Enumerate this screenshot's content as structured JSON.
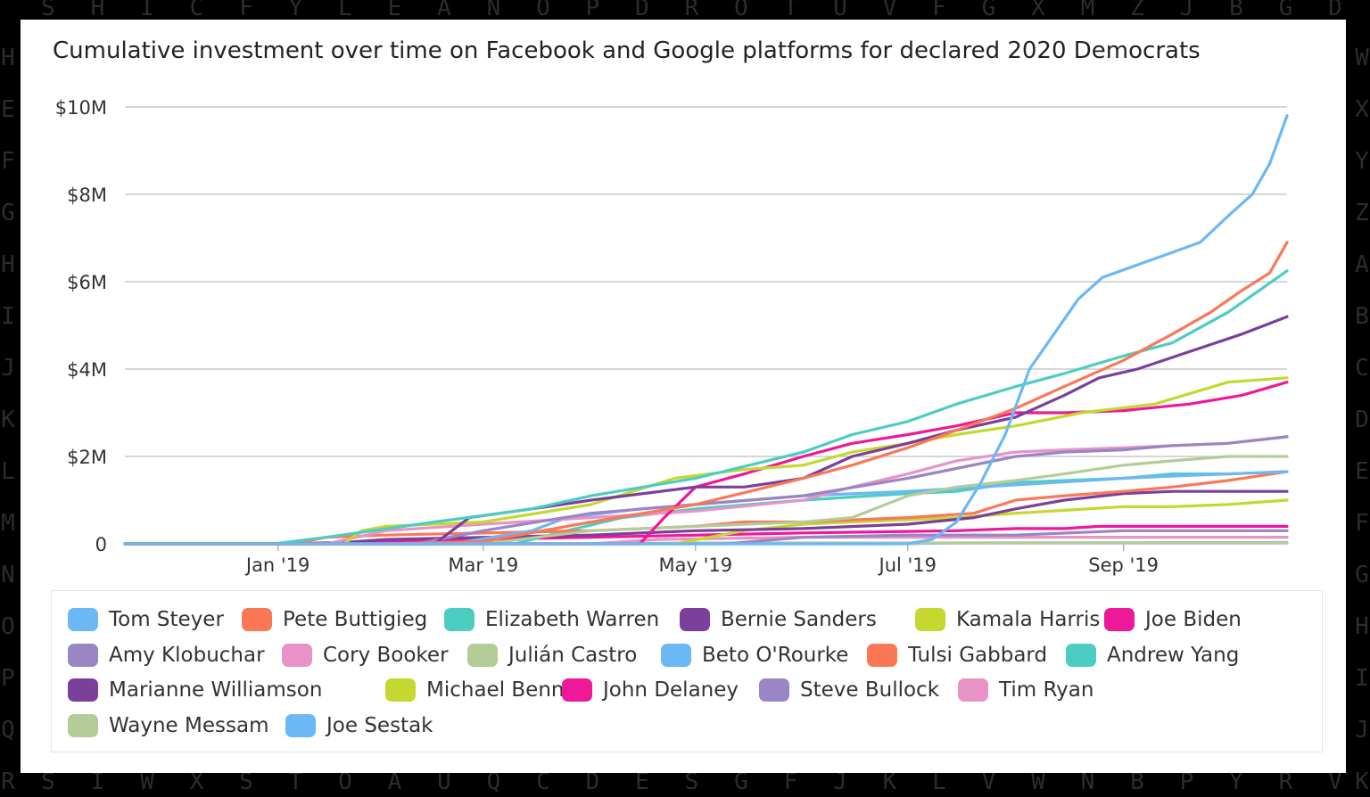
{
  "background": {
    "top_row": "SHICFYLEANOPDROTUVFGXMZJBGDW",
    "bottom_row": "SIWXSTOAUQCDESGFJKLVWNBPYRVI",
    "left_col": "HEFGHIJKLMNOPQR",
    "right_col": "WXYZABCDEFGHIJK"
  },
  "chart_data": {
    "type": "line",
    "title": "Cumulative investment over time on Facebook and Google platforms for declared 2020 Democrats",
    "xlabel": "",
    "ylabel": "",
    "x_range": [
      "2018-11-18",
      "2019-10-18"
    ],
    "ylim": [
      0,
      10
    ],
    "y_unit": "$M",
    "x_ticks": [
      {
        "date": "2019-01-01",
        "label": "Jan '19"
      },
      {
        "date": "2019-03-01",
        "label": "Mar '19"
      },
      {
        "date": "2019-05-01",
        "label": "May '19"
      },
      {
        "date": "2019-07-01",
        "label": "Jul '19"
      },
      {
        "date": "2019-09-01",
        "label": "Sep '19"
      }
    ],
    "y_ticks": [
      {
        "value": 0,
        "label": "0"
      },
      {
        "value": 2,
        "label": "$2M"
      },
      {
        "value": 4,
        "label": "$4M"
      },
      {
        "value": 6,
        "label": "$6M"
      },
      {
        "value": 8,
        "label": "$8M"
      },
      {
        "value": 10,
        "label": "$10M"
      }
    ],
    "grid": true,
    "legend_position": "bottom",
    "series": [
      {
        "name": "Tom Steyer",
        "color": "#6cb8f5",
        "points": [
          [
            "2018-11-18",
            0
          ],
          [
            "2019-07-01",
            0
          ],
          [
            "2019-07-08",
            0.1
          ],
          [
            "2019-07-15",
            0.5
          ],
          [
            "2019-07-22",
            1.4
          ],
          [
            "2019-07-29",
            2.5
          ],
          [
            "2019-08-05",
            4.0
          ],
          [
            "2019-08-12",
            4.8
          ],
          [
            "2019-08-19",
            5.6
          ],
          [
            "2019-08-26",
            6.1
          ],
          [
            "2019-09-09",
            6.5
          ],
          [
            "2019-09-23",
            6.9
          ],
          [
            "2019-10-01",
            7.5
          ],
          [
            "2019-10-08",
            8.0
          ],
          [
            "2019-10-13",
            8.7
          ],
          [
            "2019-10-18",
            9.8
          ]
        ]
      },
      {
        "name": "Pete Buttigieg",
        "color": "#fa7856",
        "points": [
          [
            "2018-11-18",
            0
          ],
          [
            "2019-02-01",
            0
          ],
          [
            "2019-03-01",
            0.05
          ],
          [
            "2019-04-01",
            0.5
          ],
          [
            "2019-05-01",
            0.9
          ],
          [
            "2019-06-01",
            1.5
          ],
          [
            "2019-06-15",
            1.8
          ],
          [
            "2019-07-01",
            2.2
          ],
          [
            "2019-07-15",
            2.6
          ],
          [
            "2019-08-01",
            3.1
          ],
          [
            "2019-08-15",
            3.6
          ],
          [
            "2019-09-01",
            4.2
          ],
          [
            "2019-09-15",
            4.8
          ],
          [
            "2019-09-26",
            5.3
          ],
          [
            "2019-10-05",
            5.8
          ],
          [
            "2019-10-13",
            6.2
          ],
          [
            "2019-10-18",
            6.9
          ]
        ]
      },
      {
        "name": "Elizabeth Warren",
        "color": "#4ccdc2",
        "points": [
          [
            "2018-11-18",
            0
          ],
          [
            "2018-12-31",
            0
          ],
          [
            "2019-01-15",
            0.15
          ],
          [
            "2019-02-15",
            0.5
          ],
          [
            "2019-03-15",
            0.8
          ],
          [
            "2019-04-01",
            1.1
          ],
          [
            "2019-05-01",
            1.5
          ],
          [
            "2019-06-01",
            2.1
          ],
          [
            "2019-06-15",
            2.5
          ],
          [
            "2019-07-01",
            2.8
          ],
          [
            "2019-07-15",
            3.2
          ],
          [
            "2019-08-01",
            3.6
          ],
          [
            "2019-08-15",
            3.9
          ],
          [
            "2019-09-01",
            4.3
          ],
          [
            "2019-09-15",
            4.6
          ],
          [
            "2019-10-01",
            5.3
          ],
          [
            "2019-10-10",
            5.8
          ],
          [
            "2019-10-18",
            6.25
          ]
        ]
      },
      {
        "name": "Bernie Sanders",
        "color": "#7b3f9c",
        "points": [
          [
            "2018-11-18",
            0
          ],
          [
            "2019-02-15",
            0
          ],
          [
            "2019-02-25",
            0.6
          ],
          [
            "2019-03-15",
            0.8
          ],
          [
            "2019-04-01",
            1.0
          ],
          [
            "2019-05-01",
            1.3
          ],
          [
            "2019-05-15",
            1.3
          ],
          [
            "2019-06-01",
            1.5
          ],
          [
            "2019-06-15",
            2.0
          ],
          [
            "2019-07-01",
            2.3
          ],
          [
            "2019-07-15",
            2.6
          ],
          [
            "2019-08-01",
            2.9
          ],
          [
            "2019-08-15",
            3.4
          ],
          [
            "2019-08-25",
            3.8
          ],
          [
            "2019-09-05",
            4.0
          ],
          [
            "2019-09-20",
            4.4
          ],
          [
            "2019-10-05",
            4.8
          ],
          [
            "2019-10-18",
            5.2
          ]
        ]
      },
      {
        "name": "Kamala Harris",
        "color": "#c4d82f",
        "points": [
          [
            "2018-11-18",
            0
          ],
          [
            "2019-01-20",
            0
          ],
          [
            "2019-01-25",
            0.3
          ],
          [
            "2019-02-01",
            0.4
          ],
          [
            "2019-03-01",
            0.5
          ],
          [
            "2019-04-01",
            0.9
          ],
          [
            "2019-04-25",
            1.5
          ],
          [
            "2019-05-15",
            1.7
          ],
          [
            "2019-06-01",
            1.8
          ],
          [
            "2019-06-15",
            2.1
          ],
          [
            "2019-07-01",
            2.3
          ],
          [
            "2019-07-15",
            2.5
          ],
          [
            "2019-08-01",
            2.7
          ],
          [
            "2019-08-20",
            3.0
          ],
          [
            "2019-09-10",
            3.2
          ],
          [
            "2019-10-01",
            3.7
          ],
          [
            "2019-10-18",
            3.8
          ]
        ]
      },
      {
        "name": "Joe Biden",
        "color": "#ee1899",
        "points": [
          [
            "2018-11-18",
            0
          ],
          [
            "2019-04-15",
            0
          ],
          [
            "2019-04-22",
            0.6
          ],
          [
            "2019-05-01",
            1.3
          ],
          [
            "2019-05-15",
            1.6
          ],
          [
            "2019-06-01",
            2.0
          ],
          [
            "2019-06-15",
            2.3
          ],
          [
            "2019-07-01",
            2.5
          ],
          [
            "2019-07-15",
            2.7
          ],
          [
            "2019-08-01",
            3.0
          ],
          [
            "2019-08-15",
            3.0
          ],
          [
            "2019-09-01",
            3.05
          ],
          [
            "2019-09-20",
            3.2
          ],
          [
            "2019-10-05",
            3.4
          ],
          [
            "2019-10-18",
            3.7
          ]
        ]
      },
      {
        "name": "Amy Klobuchar",
        "color": "#9a85c5",
        "points": [
          [
            "2018-11-18",
            0
          ],
          [
            "2019-02-10",
            0
          ],
          [
            "2019-03-01",
            0.3
          ],
          [
            "2019-04-01",
            0.7
          ],
          [
            "2019-05-01",
            0.9
          ],
          [
            "2019-06-01",
            1.1
          ],
          [
            "2019-07-01",
            1.5
          ],
          [
            "2019-08-01",
            2.0
          ],
          [
            "2019-08-15",
            2.1
          ],
          [
            "2019-09-01",
            2.15
          ],
          [
            "2019-09-15",
            2.25
          ],
          [
            "2019-10-01",
            2.3
          ],
          [
            "2019-10-18",
            2.45
          ]
        ]
      },
      {
        "name": "Cory Booker",
        "color": "#e893c6",
        "points": [
          [
            "2018-11-18",
            0
          ],
          [
            "2019-01-15",
            0
          ],
          [
            "2019-02-01",
            0.3
          ],
          [
            "2019-03-01",
            0.45
          ],
          [
            "2019-04-01",
            0.6
          ],
          [
            "2019-05-01",
            0.75
          ],
          [
            "2019-06-01",
            1.0
          ],
          [
            "2019-06-15",
            1.3
          ],
          [
            "2019-07-01",
            1.6
          ],
          [
            "2019-07-15",
            1.9
          ],
          [
            "2019-08-01",
            2.1
          ],
          [
            "2019-08-15",
            2.15
          ],
          [
            "2019-09-01",
            2.2
          ],
          [
            "2019-10-01",
            2.3
          ],
          [
            "2019-10-18",
            2.45
          ]
        ]
      },
      {
        "name": "Julián Castro",
        "color": "#b4cc97",
        "points": [
          [
            "2018-11-18",
            0
          ],
          [
            "2019-03-01",
            0
          ],
          [
            "2019-04-01",
            0.3
          ],
          [
            "2019-05-01",
            0.4
          ],
          [
            "2019-06-01",
            0.5
          ],
          [
            "2019-06-15",
            0.6
          ],
          [
            "2019-07-01",
            1.1
          ],
          [
            "2019-07-15",
            1.3
          ],
          [
            "2019-08-01",
            1.45
          ],
          [
            "2019-08-15",
            1.6
          ],
          [
            "2019-09-01",
            1.8
          ],
          [
            "2019-09-15",
            1.9
          ],
          [
            "2019-10-01",
            2.0
          ],
          [
            "2019-10-18",
            2.0
          ]
        ]
      },
      {
        "name": "Beto O'Rourke",
        "color": "#6cb8f5",
        "points": [
          [
            "2018-11-18",
            0
          ],
          [
            "2019-02-20",
            0
          ],
          [
            "2019-03-15",
            0.3
          ],
          [
            "2019-03-25",
            0.6
          ],
          [
            "2019-04-15",
            0.8
          ],
          [
            "2019-05-01",
            0.9
          ],
          [
            "2019-06-01",
            1.1
          ],
          [
            "2019-07-01",
            1.2
          ],
          [
            "2019-08-01",
            1.35
          ],
          [
            "2019-09-01",
            1.5
          ],
          [
            "2019-09-15",
            1.55
          ],
          [
            "2019-10-01",
            1.6
          ],
          [
            "2019-10-18",
            1.65
          ]
        ]
      },
      {
        "name": "Tulsi Gabbard",
        "color": "#fa7856",
        "points": [
          [
            "2018-11-18",
            0
          ],
          [
            "2019-01-05",
            0
          ],
          [
            "2019-01-15",
            0.15
          ],
          [
            "2019-02-01",
            0.2
          ],
          [
            "2019-04-01",
            0.3
          ],
          [
            "2019-05-01",
            0.4
          ],
          [
            "2019-05-15",
            0.5
          ],
          [
            "2019-06-01",
            0.5
          ],
          [
            "2019-07-01",
            0.6
          ],
          [
            "2019-07-20",
            0.7
          ],
          [
            "2019-08-01",
            1.0
          ],
          [
            "2019-08-15",
            1.1
          ],
          [
            "2019-09-01",
            1.2
          ],
          [
            "2019-09-15",
            1.3
          ],
          [
            "2019-10-01",
            1.45
          ],
          [
            "2019-10-18",
            1.65
          ]
        ]
      },
      {
        "name": "Andrew Yang",
        "color": "#4ccdc2",
        "points": [
          [
            "2018-11-18",
            0
          ],
          [
            "2019-03-10",
            0
          ],
          [
            "2019-03-25",
            0.3
          ],
          [
            "2019-04-10",
            0.6
          ],
          [
            "2019-05-01",
            0.8
          ],
          [
            "2019-06-01",
            1.0
          ],
          [
            "2019-07-01",
            1.15
          ],
          [
            "2019-07-15",
            1.2
          ],
          [
            "2019-08-01",
            1.4
          ],
          [
            "2019-08-15",
            1.45
          ],
          [
            "2019-09-01",
            1.5
          ],
          [
            "2019-09-15",
            1.6
          ],
          [
            "2019-10-01",
            1.6
          ],
          [
            "2019-10-18",
            1.65
          ]
        ]
      },
      {
        "name": "Marianne Williamson",
        "color": "#7b3f9c",
        "points": [
          [
            "2018-11-18",
            0
          ],
          [
            "2019-01-15",
            0
          ],
          [
            "2019-02-01",
            0.1
          ],
          [
            "2019-04-01",
            0.2
          ],
          [
            "2019-05-01",
            0.3
          ],
          [
            "2019-06-01",
            0.35
          ],
          [
            "2019-07-01",
            0.45
          ],
          [
            "2019-07-20",
            0.6
          ],
          [
            "2019-08-01",
            0.8
          ],
          [
            "2019-08-15",
            1.0
          ],
          [
            "2019-09-01",
            1.15
          ],
          [
            "2019-09-15",
            1.2
          ],
          [
            "2019-10-18",
            1.2
          ]
        ]
      },
      {
        "name": "Michael Bennet",
        "color": "#c4d82f",
        "points": [
          [
            "2018-11-18",
            0
          ],
          [
            "2019-04-25",
            0
          ],
          [
            "2019-05-15",
            0.3
          ],
          [
            "2019-06-01",
            0.45
          ],
          [
            "2019-06-15",
            0.5
          ],
          [
            "2019-07-01",
            0.55
          ],
          [
            "2019-07-15",
            0.6
          ],
          [
            "2019-08-01",
            0.7
          ],
          [
            "2019-09-01",
            0.85
          ],
          [
            "2019-09-15",
            0.85
          ],
          [
            "2019-10-01",
            0.9
          ],
          [
            "2019-10-18",
            1.0
          ]
        ]
      },
      {
        "name": "John Delaney",
        "color": "#ee1899",
        "points": [
          [
            "2018-11-18",
            0
          ],
          [
            "2019-01-01",
            0
          ],
          [
            "2019-02-01",
            0.05
          ],
          [
            "2019-04-01",
            0.15
          ],
          [
            "2019-06-01",
            0.25
          ],
          [
            "2019-07-15",
            0.3
          ],
          [
            "2019-08-01",
            0.35
          ],
          [
            "2019-08-15",
            0.35
          ],
          [
            "2019-08-25",
            0.4
          ],
          [
            "2019-10-18",
            0.4
          ]
        ]
      },
      {
        "name": "Steve Bullock",
        "color": "#9a85c5",
        "points": [
          [
            "2018-11-18",
            0
          ],
          [
            "2019-05-10",
            0
          ],
          [
            "2019-06-01",
            0.15
          ],
          [
            "2019-07-01",
            0.2
          ],
          [
            "2019-08-01",
            0.2
          ],
          [
            "2019-09-01",
            0.3
          ],
          [
            "2019-10-18",
            0.3
          ]
        ]
      },
      {
        "name": "Tim Ryan",
        "color": "#e893c6",
        "points": [
          [
            "2018-11-18",
            0
          ],
          [
            "2019-04-01",
            0
          ],
          [
            "2019-04-20",
            0.1
          ],
          [
            "2019-06-01",
            0.15
          ],
          [
            "2019-08-01",
            0.15
          ],
          [
            "2019-10-18",
            0.15
          ]
        ]
      },
      {
        "name": "Wayne Messam",
        "color": "#b4cc97",
        "points": [
          [
            "2018-11-18",
            0
          ],
          [
            "2019-04-01",
            0
          ],
          [
            "2019-05-01",
            0.02
          ],
          [
            "2019-10-18",
            0.02
          ]
        ]
      },
      {
        "name": "Joe Sestak",
        "color": "#6cb8f5",
        "points": [
          [
            "2018-11-18",
            0
          ],
          [
            "2019-06-25",
            0
          ],
          [
            "2019-07-15",
            0.02
          ],
          [
            "2019-10-18",
            0.03
          ]
        ]
      }
    ]
  }
}
